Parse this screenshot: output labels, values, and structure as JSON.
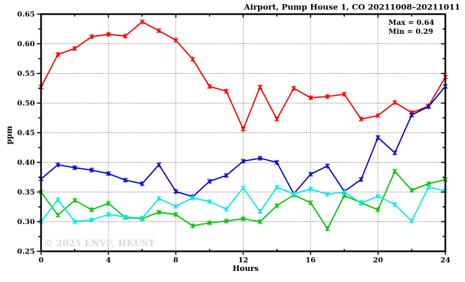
{
  "header": {
    "title": "Airport, Pump House 1, CO 20211008–20211011"
  },
  "annotation": {
    "max_label": "Max = 0.64",
    "min_label": "Min = 0.29"
  },
  "watermark": "© 2025 ENVF, HKUST",
  "chart_data": {
    "type": "line",
    "title": "Airport, Pump House 1, CO 20211008–20211011",
    "xlabel": "Hours",
    "ylabel": "ppm",
    "xlim": [
      0,
      24
    ],
    "ylim": [
      0.25,
      0.65
    ],
    "x_tick_values": [
      0,
      4,
      8,
      12,
      16,
      20,
      24
    ],
    "x_tick_labels": [
      "0",
      "4",
      "8",
      "12",
      "16",
      "20",
      "24"
    ],
    "x_minor_tick_values": [
      2,
      6,
      10,
      14,
      18,
      22
    ],
    "y_tick_values": [
      0.25,
      0.3,
      0.35,
      0.4,
      0.45,
      0.5,
      0.55,
      0.6,
      0.65
    ],
    "y_tick_labels": [
      "0.25",
      "0.30",
      "0.35",
      "0.40",
      "0.45",
      "0.50",
      "0.55",
      "0.60",
      "0.65"
    ],
    "y_minor_tick_values": [
      0.275,
      0.325,
      0.375,
      0.425,
      0.475,
      0.525,
      0.575,
      0.625
    ],
    "grid": "dotted lines at major ticks, both axes",
    "legend": "none",
    "marker": "asterisk",
    "annotations": [
      "Max = 0.64",
      "Min = 0.29"
    ],
    "x": [
      0,
      1,
      2,
      3,
      4,
      5,
      6,
      7,
      8,
      9,
      10,
      11,
      12,
      13,
      14,
      15,
      16,
      17,
      18,
      19,
      20,
      21,
      22,
      23,
      24
    ],
    "series": [
      {
        "name": "series-red",
        "color": "#f00000",
        "values": [
          0.527,
          0.582,
          0.592,
          0.612,
          0.616,
          0.613,
          0.637,
          0.622,
          0.606,
          0.574,
          0.528,
          0.52,
          0.456,
          0.527,
          0.473,
          0.525,
          0.509,
          0.511,
          0.515,
          0.473,
          0.479,
          0.501,
          0.484,
          0.495,
          0.544
        ]
      },
      {
        "name": "series-blue",
        "color": "#0000cc",
        "values": [
          0.372,
          0.396,
          0.391,
          0.387,
          0.381,
          0.37,
          0.364,
          0.396,
          0.351,
          0.342,
          0.368,
          0.378,
          0.402,
          0.407,
          0.4,
          0.347,
          0.38,
          0.394,
          0.351,
          0.371,
          0.442,
          0.416,
          0.48,
          0.494,
          0.528
        ]
      },
      {
        "name": "series-green",
        "color": "#00c000",
        "values": [
          0.35,
          0.311,
          0.336,
          0.32,
          0.331,
          0.307,
          0.305,
          0.316,
          0.312,
          0.293,
          0.298,
          0.301,
          0.305,
          0.3,
          0.327,
          0.345,
          0.332,
          0.288,
          0.344,
          0.332,
          0.32,
          0.385,
          0.353,
          0.364,
          0.371
        ]
      },
      {
        "name": "series-cyan",
        "color": "#00e8e8",
        "values": [
          0.3,
          0.337,
          0.3,
          0.303,
          0.312,
          0.308,
          0.306,
          0.339,
          0.326,
          0.34,
          0.334,
          0.321,
          0.357,
          0.317,
          0.358,
          0.347,
          0.355,
          0.346,
          0.35,
          0.331,
          0.343,
          0.329,
          0.301,
          0.358,
          0.352
        ]
      }
    ]
  }
}
